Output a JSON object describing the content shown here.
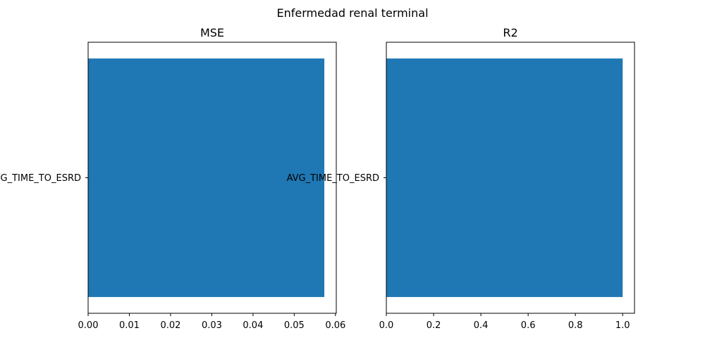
{
  "figure": {
    "title": "Enfermedad renal terminal"
  },
  "chart_data": [
    {
      "type": "bar",
      "orientation": "horizontal",
      "title": "MSE",
      "categories": [
        "AVG_TIME_TO_ESRD"
      ],
      "values": [
        0.0573
      ],
      "xlim": [
        0,
        0.0602
      ],
      "xticks": [
        0.0,
        0.01,
        0.02,
        0.03,
        0.04,
        0.05,
        0.06
      ],
      "xtick_labels": [
        "0.00",
        "0.01",
        "0.02",
        "0.03",
        "0.04",
        "0.05",
        "0.06"
      ],
      "xlabel": "",
      "ylabel": "",
      "grid": false,
      "bar_color": "#1f77b4"
    },
    {
      "type": "bar",
      "orientation": "horizontal",
      "title": "R2",
      "categories": [
        "AVG_TIME_TO_ESRD"
      ],
      "values": [
        1.0
      ],
      "xlim": [
        0,
        1.05
      ],
      "xticks": [
        0.0,
        0.2,
        0.4,
        0.6,
        0.8,
        1.0
      ],
      "xtick_labels": [
        "0.0",
        "0.2",
        "0.4",
        "0.6",
        "0.8",
        "1.0"
      ],
      "xlabel": "",
      "ylabel": "",
      "grid": false,
      "bar_color": "#1f77b4"
    }
  ]
}
